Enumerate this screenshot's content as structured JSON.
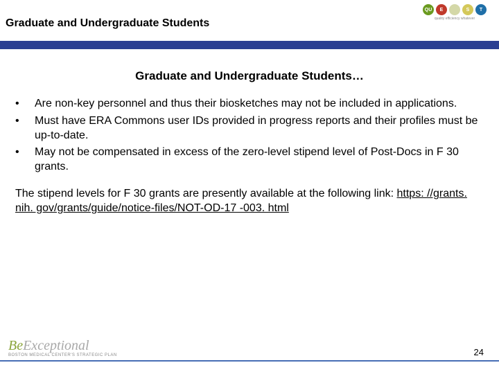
{
  "header": {
    "title": "Graduate and Undergraduate Students",
    "logo": {
      "letters": [
        "QU",
        "E",
        "",
        "S",
        "T"
      ],
      "colors": [
        "#6a9a1f",
        "#c0392b",
        "#d4d8a8",
        "#d4c85a",
        "#1f6fa8"
      ],
      "subtext": "quality efficiency whatever"
    }
  },
  "divider_color": "#2b3f92",
  "subtitle": "Graduate and Undergraduate Students…",
  "bullets": [
    "Are non-key personnel and thus their biosketches may not be included in applications.",
    "Must have ERA Commons user IDs provided in progress reports and their profiles must be up-to-date.",
    "May not be compensated in excess of the zero-level stipend level of Post-Docs in F 30 grants."
  ],
  "paragraph": {
    "text_before_link": "The stipend levels for F 30 grants are presently available at the following link: ",
    "link_text": "https: //grants. nih. gov/grants/guide/notice-files/NOT-OD-17 -003. html",
    "link_href": "https://grants.nih.gov/grants/guide/notice-files/NOT-OD-17-003.html"
  },
  "footer": {
    "be_first": "Be",
    "be_rest": "Exceptional",
    "be_sub": "BOSTON MEDICAL CENTER'S STRATEGIC PLAN",
    "rule_color": "#466db5",
    "page_number": "24"
  },
  "typography": {
    "title_fontsize": 16,
    "subtitle_fontsize": 17,
    "body_fontsize": 16,
    "pagenum_fontsize": 13
  },
  "background_color": "#ffffff"
}
